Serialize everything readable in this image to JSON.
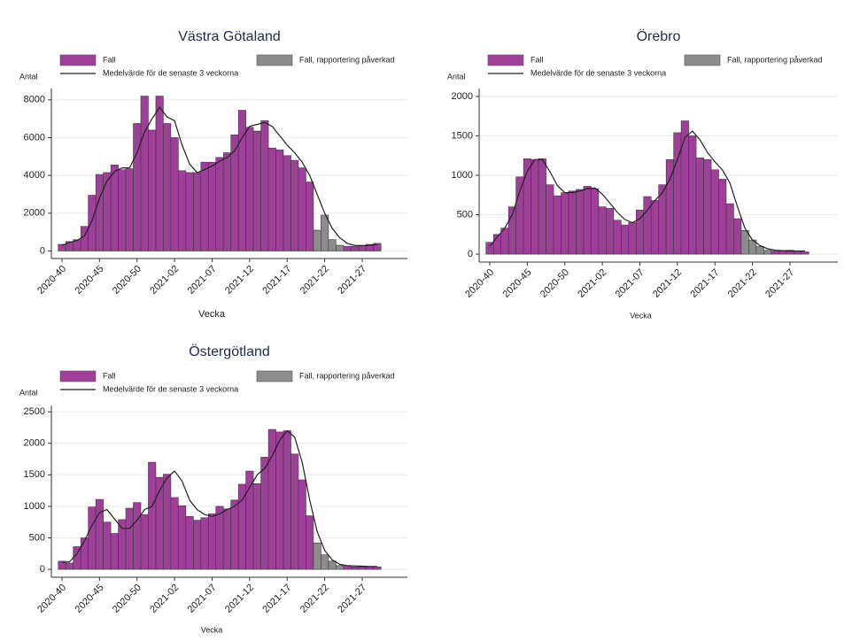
{
  "chart_data": [
    {
      "type": "bar",
      "title": "Västra Götaland",
      "y_label": "Antal",
      "x_label": "Vecka",
      "categories": [
        "2020-40",
        null,
        null,
        null,
        null,
        "2020-45",
        null,
        null,
        null,
        null,
        "2020-50",
        null,
        null,
        null,
        null,
        "2021-02",
        null,
        null,
        null,
        null,
        "2021-07",
        null,
        null,
        null,
        null,
        "2021-12",
        null,
        null,
        null,
        null,
        "2021-17",
        null,
        null,
        null,
        null,
        "2021-22",
        null,
        null,
        null,
        null,
        "2021-27",
        null,
        null
      ],
      "series": [
        {
          "name": "Fall",
          "color": "#9e3f98",
          "values": [
            350,
            500,
            600,
            1300,
            2950,
            4050,
            4150,
            4550,
            4300,
            4350,
            6750,
            8200,
            6400,
            8200,
            6750,
            6000,
            4250,
            4150,
            4150,
            4700,
            4700,
            4950,
            5200,
            6150,
            7450,
            6550,
            6350,
            6900,
            5450,
            5350,
            5050,
            4800,
            4400,
            3650,
            null,
            null,
            null,
            null,
            250,
            250,
            300,
            350,
            400
          ]
        },
        {
          "name": "Fall, rapportering påverkad",
          "color": "#8c8c8c",
          "values": [
            null,
            null,
            null,
            null,
            null,
            null,
            null,
            null,
            null,
            null,
            null,
            null,
            null,
            null,
            null,
            null,
            null,
            null,
            null,
            null,
            null,
            null,
            null,
            null,
            null,
            null,
            null,
            null,
            null,
            null,
            null,
            null,
            null,
            null,
            1100,
            1900,
            600,
            300,
            null,
            null,
            null,
            null,
            null
          ]
        },
        {
          "name": "Medelvärde för de senaste 3 veckorna",
          "color": "#222222",
          "type": "line",
          "values": [
            300,
            450,
            550,
            800,
            1600,
            2800,
            3700,
            4200,
            4400,
            4400,
            5200,
            6300,
            7000,
            7600,
            7100,
            6900,
            5600,
            4600,
            4150,
            4300,
            4500,
            4750,
            4950,
            5300,
            6000,
            6600,
            6700,
            6800,
            6600,
            6100,
            5600,
            5200,
            4700,
            4000,
            3000,
            2000,
            1200,
            700,
            400,
            300,
            280,
            300,
            350
          ]
        }
      ],
      "ylim": [
        -400,
        8600
      ],
      "yticks": [
        0,
        2000,
        4000,
        6000,
        8000
      ],
      "grid": true
    },
    {
      "type": "bar",
      "title": "Örebro",
      "y_label": "Antal",
      "x_label": "Vecka",
      "categories": [
        "2020-40",
        null,
        null,
        null,
        null,
        "2020-45",
        null,
        null,
        null,
        null,
        "2020-50",
        null,
        null,
        null,
        null,
        "2021-02",
        null,
        null,
        null,
        null,
        "2021-07",
        null,
        null,
        null,
        null,
        "2021-12",
        null,
        null,
        null,
        null,
        "2021-17",
        null,
        null,
        null,
        null,
        "2021-22",
        null,
        null,
        null,
        null,
        "2021-27",
        null,
        null
      ],
      "series": [
        {
          "name": "Fall",
          "color": "#9e3f98",
          "values": [
            150,
            250,
            330,
            600,
            980,
            1210,
            1200,
            1210,
            880,
            740,
            780,
            800,
            820,
            860,
            830,
            600,
            580,
            430,
            370,
            400,
            560,
            730,
            680,
            880,
            1200,
            1540,
            1690,
            1500,
            1220,
            1200,
            1070,
            950,
            640,
            450,
            null,
            null,
            null,
            null,
            40,
            40,
            50,
            40,
            30
          ]
        },
        {
          "name": "Fall, rapportering påverkad",
          "color": "#8c8c8c",
          "values": [
            null,
            null,
            null,
            null,
            null,
            null,
            null,
            null,
            null,
            null,
            null,
            null,
            null,
            null,
            null,
            null,
            null,
            null,
            null,
            null,
            null,
            null,
            null,
            null,
            null,
            null,
            null,
            null,
            null,
            null,
            null,
            null,
            null,
            null,
            300,
            180,
            100,
            50,
            null,
            null,
            null,
            null,
            null
          ]
        },
        {
          "name": "Medelvärde för de senaste 3 veckorna",
          "color": "#222222",
          "type": "line",
          "values": [
            100,
            220,
            330,
            500,
            800,
            1050,
            1200,
            1200,
            1050,
            870,
            780,
            780,
            800,
            830,
            840,
            760,
            650,
            530,
            440,
            400,
            450,
            560,
            680,
            780,
            950,
            1200,
            1480,
            1560,
            1450,
            1290,
            1170,
            1070,
            900,
            600,
            330,
            180,
            110,
            70,
            50,
            45,
            40,
            40,
            40
          ]
        }
      ],
      "ylim": [
        -100,
        2100
      ],
      "yticks": [
        0,
        500,
        1000,
        1500,
        2000
      ],
      "grid": true
    },
    {
      "type": "bar",
      "title": "Östergötland",
      "y_label": "Antal",
      "x_label": "Vecka",
      "categories": [
        "2020-40",
        null,
        null,
        null,
        null,
        "2020-45",
        null,
        null,
        null,
        null,
        "2020-50",
        null,
        null,
        null,
        null,
        "2021-02",
        null,
        null,
        null,
        null,
        "2021-07",
        null,
        null,
        null,
        null,
        "2021-12",
        null,
        null,
        null,
        null,
        "2021-17",
        null,
        null,
        null,
        null,
        "2021-22",
        null,
        null,
        null,
        null,
        "2021-27",
        null,
        null
      ],
      "series": [
        {
          "name": "Fall",
          "color": "#9e3f98",
          "values": [
            130,
            100,
            360,
            500,
            990,
            1110,
            750,
            570,
            790,
            970,
            1060,
            870,
            1700,
            1460,
            1510,
            1140,
            1010,
            840,
            780,
            820,
            880,
            1000,
            960,
            1100,
            1350,
            1560,
            1360,
            1780,
            2220,
            2180,
            2200,
            1830,
            1420,
            850,
            null,
            null,
            null,
            null,
            50,
            40,
            40,
            40,
            40
          ]
        },
        {
          "name": "Fall, rapportering påverkad",
          "color": "#8c8c8c",
          "values": [
            null,
            null,
            null,
            null,
            null,
            null,
            null,
            null,
            null,
            null,
            null,
            null,
            null,
            null,
            null,
            null,
            null,
            null,
            null,
            null,
            null,
            null,
            null,
            null,
            null,
            null,
            null,
            null,
            null,
            null,
            null,
            null,
            null,
            null,
            420,
            230,
            130,
            60,
            null,
            null,
            null,
            null,
            null
          ]
        },
        {
          "name": "Medelvärde för de senaste 3 veckorna",
          "color": "#222222",
          "type": "line",
          "values": [
            110,
            120,
            250,
            450,
            700,
            900,
            950,
            800,
            650,
            650,
            780,
            950,
            1000,
            1250,
            1450,
            1560,
            1400,
            1100,
            950,
            870,
            840,
            880,
            950,
            1000,
            1100,
            1300,
            1500,
            1600,
            1800,
            2050,
            2200,
            2100,
            1700,
            1100,
            600,
            300,
            150,
            80,
            60,
            55,
            50,
            45,
            45
          ]
        }
      ],
      "ylim": [
        -125,
        2600
      ],
      "yticks": [
        0,
        500,
        1000,
        1500,
        2000,
        2500
      ],
      "grid": true
    }
  ]
}
